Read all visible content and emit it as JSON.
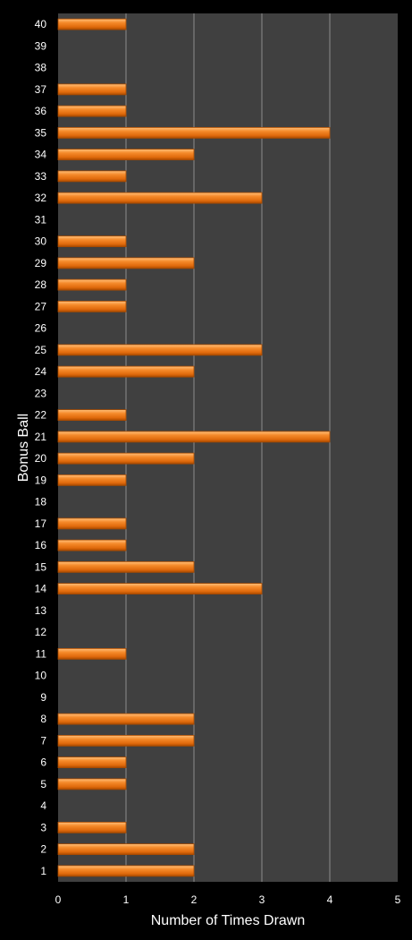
{
  "chart_data": {
    "type": "bar",
    "orientation": "horizontal",
    "categories": [
      "1",
      "2",
      "3",
      "4",
      "5",
      "6",
      "7",
      "8",
      "9",
      "10",
      "11",
      "12",
      "13",
      "14",
      "15",
      "16",
      "17",
      "18",
      "19",
      "20",
      "21",
      "22",
      "23",
      "24",
      "25",
      "26",
      "27",
      "28",
      "29",
      "30",
      "31",
      "32",
      "33",
      "34",
      "35",
      "36",
      "37",
      "38",
      "39",
      "40"
    ],
    "values": [
      2,
      2,
      1,
      0,
      1,
      1,
      2,
      2,
      0,
      0,
      1,
      0,
      0,
      3,
      2,
      1,
      1,
      0,
      1,
      2,
      4,
      1,
      0,
      2,
      3,
      0,
      1,
      1,
      2,
      1,
      0,
      3,
      1,
      2,
      4,
      1,
      1,
      0,
      0,
      1
    ],
    "xlabel": "Number of Times Drawn",
    "ylabel": "Bonus Ball",
    "xlim": [
      0,
      5
    ],
    "xticks": [
      "0",
      "1",
      "2",
      "3",
      "4",
      "5"
    ],
    "grid": "vertical",
    "legend": "none",
    "colors": {
      "background": "#000000",
      "plot_area": "#404040",
      "gridline": "#8c8c8c",
      "bar": "#f07c1c",
      "bar_highlight": "#ffc07a",
      "bar_shadow": "#a84a00",
      "text": "#ffffff"
    }
  }
}
